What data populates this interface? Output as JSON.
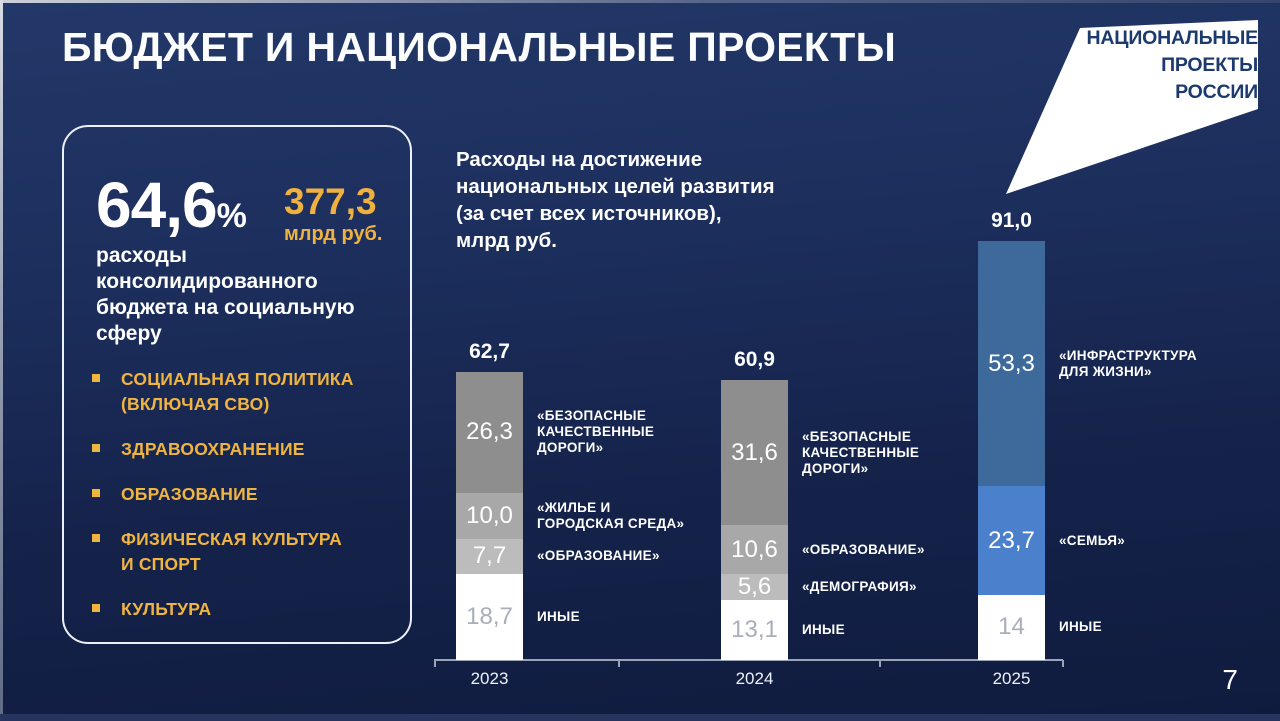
{
  "slide": {
    "title": "БЮДЖЕТ И НАЦИОНАЛЬНЫЕ ПРОЕКТЫ",
    "page_number": "7"
  },
  "logo": {
    "lines": [
      "НАЦИОНАЛЬНЫЕ",
      "ПРОЕКТЫ",
      "РОССИИ"
    ]
  },
  "stat_card": {
    "percent_value": "64,6",
    "percent_sign": "%",
    "amount_value": "377,3",
    "amount_unit": "млрд руб.",
    "description": "расходы консолидированного бюджета на социальную сферу",
    "bullets": [
      "СОЦИАЛЬНАЯ ПОЛИТИКА\n(ВКЛЮЧАЯ СВО)",
      "ЗДРАВООХРАНЕНИЕ",
      "ОБРАЗОВАНИЕ",
      "ФИЗИЧЕСКАЯ КУЛЬТУРА\nИ СПОРТ",
      "КУЛЬТУРА"
    ]
  },
  "chart_data": {
    "type": "bar",
    "subtype": "stacked-vertical",
    "title": "Расходы на достижение\nнациональных целей развития\n(за счет всех источников),\nмлрд руб.",
    "unit": "млрд руб.",
    "categories": [
      "2023",
      "2024",
      "2025"
    ],
    "grid": false,
    "legend": "inline-right-of-segments",
    "segments_order": "top-to-bottom",
    "bars": [
      {
        "category": "2023",
        "total": 62.7,
        "total_label": "62,7",
        "segments": [
          {
            "value": 26.3,
            "label": "26,3",
            "name": "«БЕЗОПАСНЫЕ\nКАЧЕСТВЕННЫЕ\nДОРОГИ»",
            "color": "#8e8e8e"
          },
          {
            "value": 10.0,
            "label": "10,0",
            "name": "«ЖИЛЬЕ И\nГОРОДСКАЯ СРЕДА»",
            "color": "#a8a8a8"
          },
          {
            "value": 7.7,
            "label": "7,7",
            "name": "«ОБРАЗОВАНИЕ»",
            "color": "#bcbcbc"
          },
          {
            "value": 18.7,
            "label": "18,7",
            "name": "ИНЫЕ",
            "color": "#ffffff"
          }
        ]
      },
      {
        "category": "2024",
        "total": 60.9,
        "total_label": "60,9",
        "segments": [
          {
            "value": 31.6,
            "label": "31,6",
            "name": "«БЕЗОПАСНЫЕ\nКАЧЕСТВЕННЫЕ\nДОРОГИ»",
            "color": "#8e8e8e"
          },
          {
            "value": 10.6,
            "label": "10,6",
            "name": "«ОБРАЗОВАНИЕ»",
            "color": "#a8a8a8"
          },
          {
            "value": 5.6,
            "label": "5,6",
            "name": "«ДЕМОГРАФИЯ»",
            "color": "#bcbcbc"
          },
          {
            "value": 13.1,
            "label": "13,1",
            "name": "ИНЫЕ",
            "color": "#ffffff"
          }
        ]
      },
      {
        "category": "2025",
        "total": 91.0,
        "total_label": "91,0",
        "segments": [
          {
            "value": 53.3,
            "label": "53,3",
            "name": "«ИНФРАСТРУКТУРА\nДЛЯ ЖИЗНИ»",
            "color": "#3d6a9b"
          },
          {
            "value": 23.7,
            "label": "23,7",
            "name": "«СЕМЬЯ»",
            "color": "#4b80cc"
          },
          {
            "value": 14.0,
            "label": "14",
            "name": "ИНЫЕ",
            "color": "#ffffff"
          }
        ]
      }
    ],
    "colors": {
      "background_top": "#233869",
      "background_bottom": "#0f1b3e",
      "accent_gold": "#efb240",
      "axis": "#9aa3b8",
      "white_segment_value_text": "#a9aeb9"
    }
  }
}
